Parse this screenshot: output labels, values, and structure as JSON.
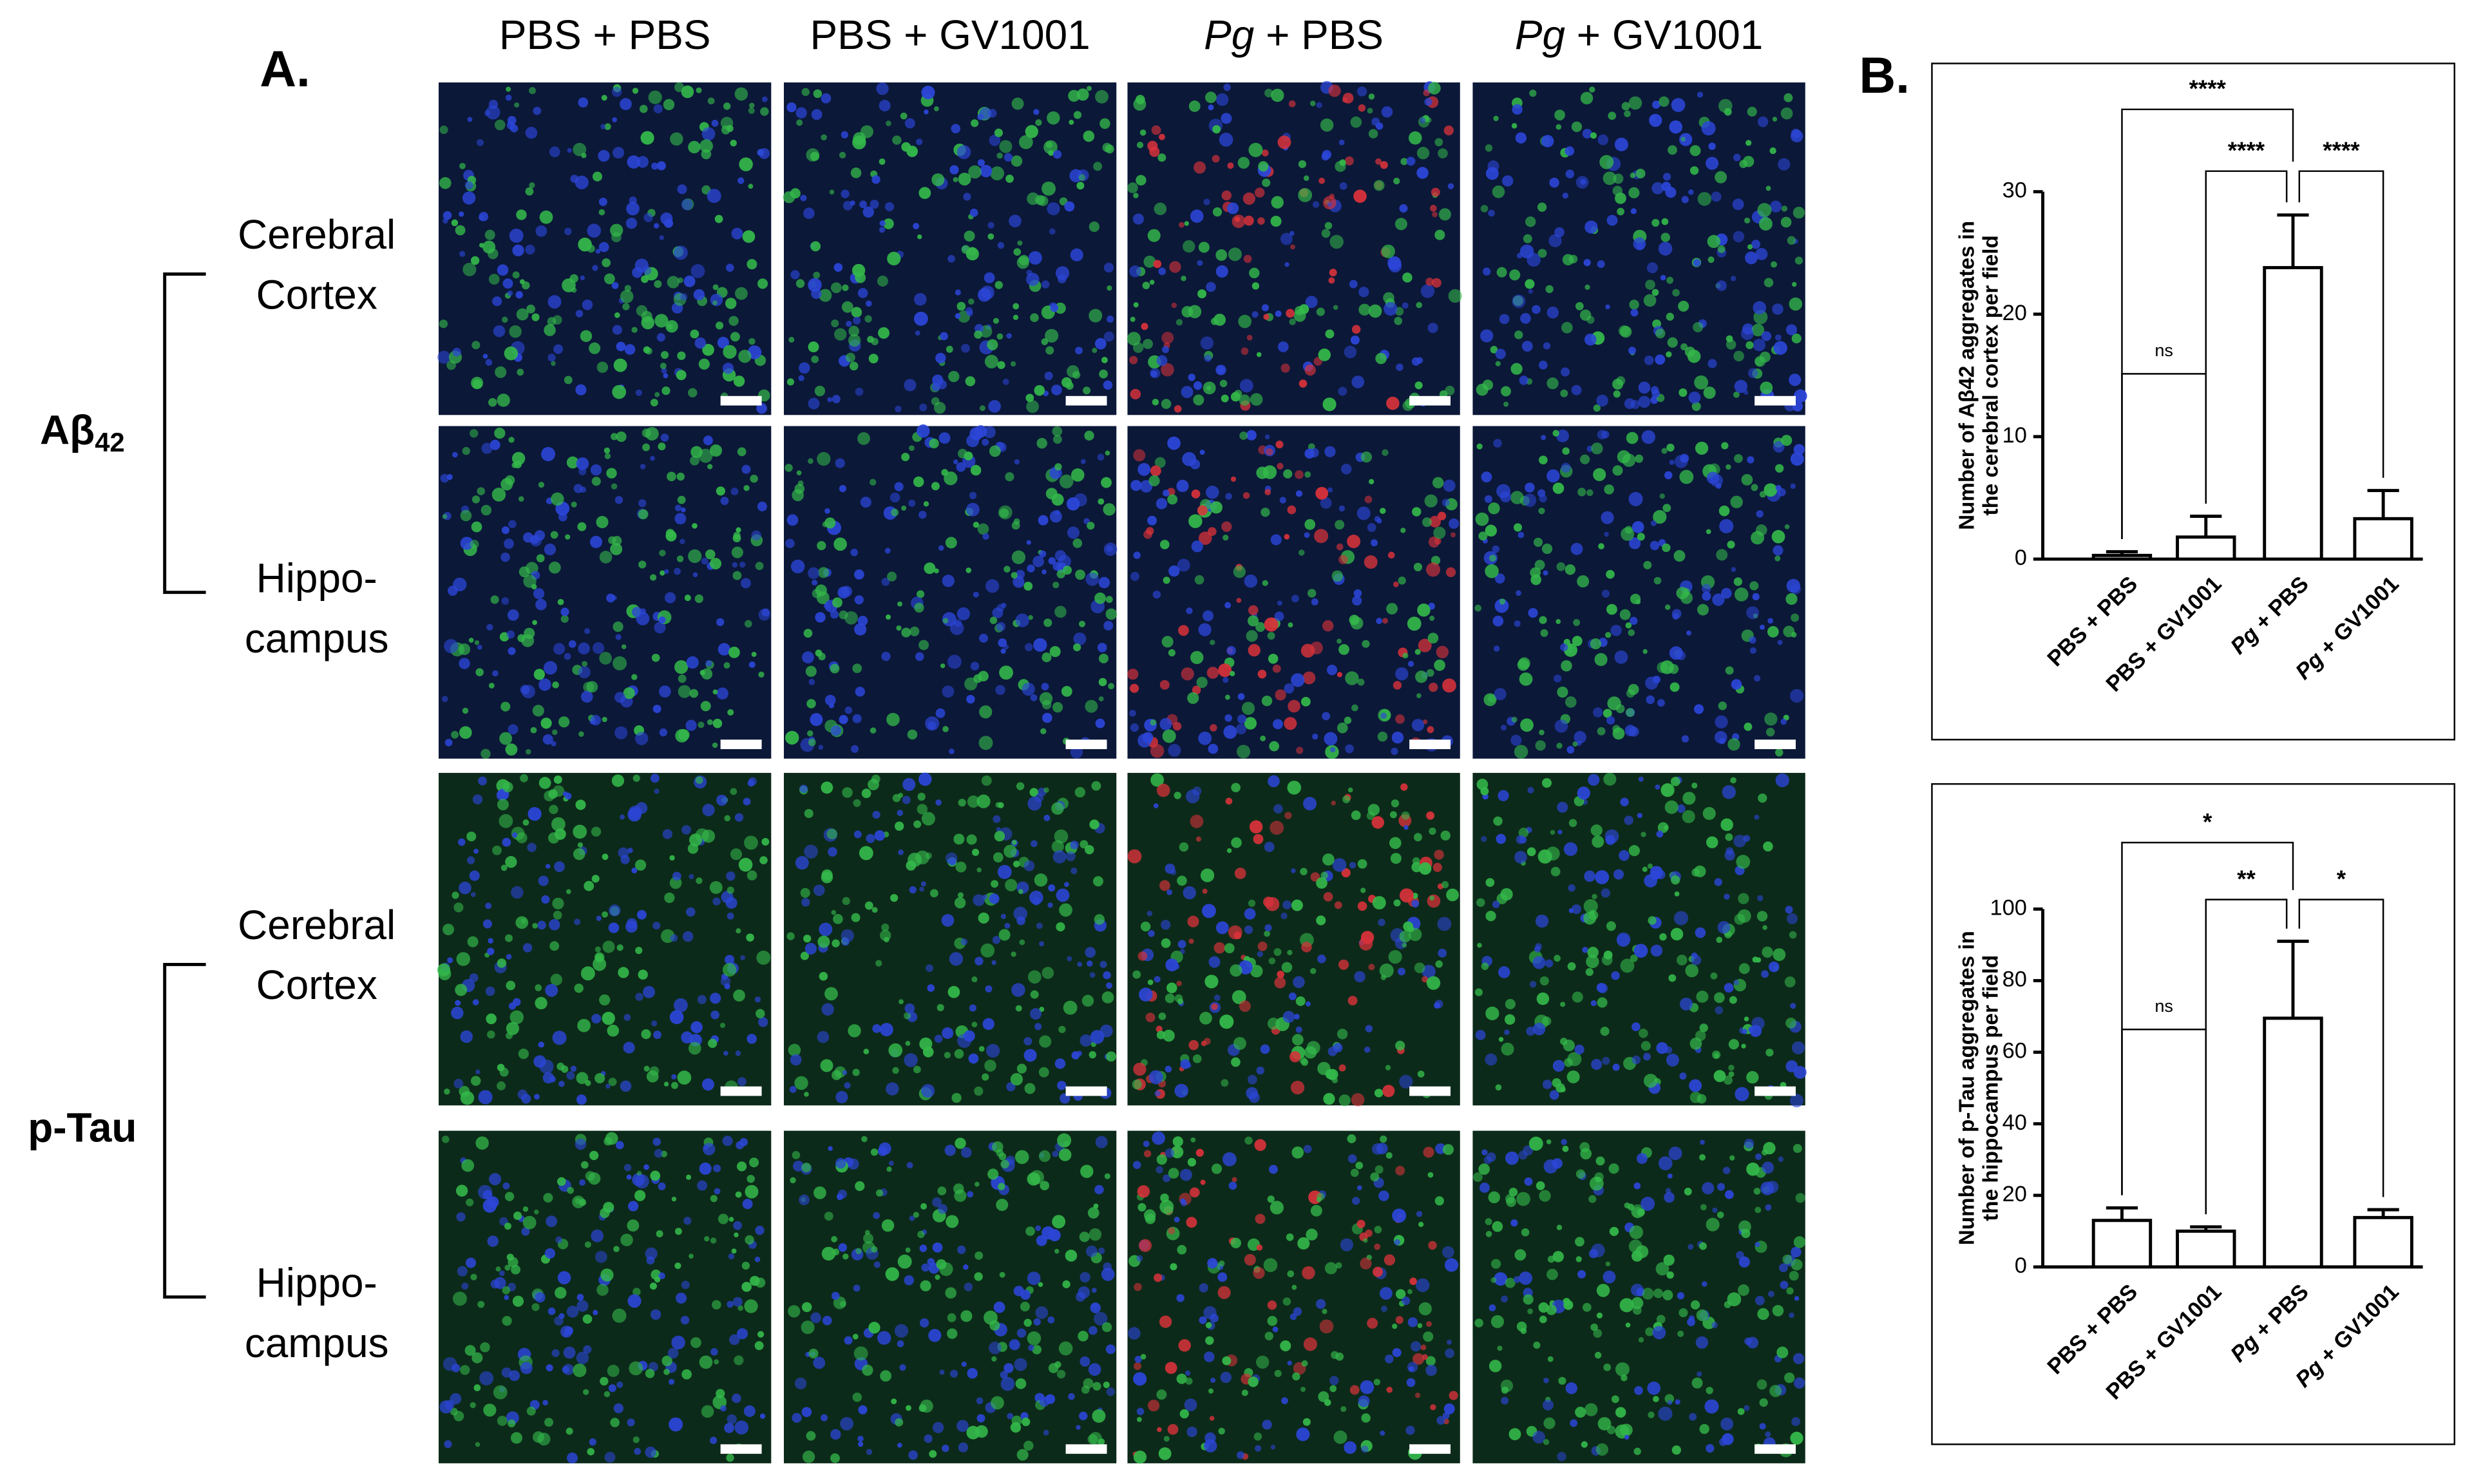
{
  "panel_a": {
    "label": "A.",
    "columns": [
      "PBS + PBS",
      "PBS + GV1001",
      "Pg + PBS",
      "Pg + GV1001"
    ],
    "row_groups": [
      {
        "label": "Aβ42",
        "rows": [
          [
            "Cerebral",
            "Cortex"
          ],
          [
            "Hippo-",
            "campus"
          ]
        ]
      },
      {
        "label": "p-Tau",
        "rows": [
          [
            "Cerebral",
            "Cortex"
          ],
          [
            "Hippo-",
            "campus"
          ]
        ]
      }
    ]
  },
  "panel_b_label": "B.",
  "chart_data": [
    {
      "type": "bar",
      "y_label": [
        "Number of Aβ42 aggregates in",
        "the cerebral cortex per field"
      ],
      "categories": [
        "PBS + PBS",
        "PBS + GV1001",
        "Pg + PBS",
        "Pg + GV1001"
      ],
      "values": [
        0.3,
        1.8,
        23.8,
        3.3
      ],
      "errors": [
        0.3,
        1.7,
        4.3,
        2.3
      ],
      "color": "#000000",
      "ylim": [
        0,
        30
      ],
      "yticks": [
        0,
        10,
        20,
        30
      ],
      "significance": [
        {
          "groups": [
            0,
            2
          ],
          "label": "****"
        },
        {
          "groups": [
            1,
            2
          ],
          "label": "****"
        },
        {
          "groups": [
            2,
            3
          ],
          "label": "****"
        },
        {
          "groups": [
            0,
            1
          ],
          "label": "ns"
        }
      ]
    },
    {
      "type": "bar",
      "y_label": [
        "Number of p-Tau aggregates in",
        "the hippocampus per field"
      ],
      "categories": [
        "PBS + PBS",
        "PBS + GV1001",
        "Pg + PBS",
        "Pg + GV1001"
      ],
      "values": [
        13,
        10,
        69.5,
        13.8
      ],
      "errors": [
        3.5,
        1.2,
        21.5,
        2.2
      ],
      "color": "#000000",
      "ylim": [
        0,
        100
      ],
      "yticks": [
        0,
        20,
        40,
        60,
        80,
        100
      ],
      "significance": [
        {
          "groups": [
            0,
            2
          ],
          "label": "*"
        },
        {
          "groups": [
            1,
            2
          ],
          "label": "**"
        },
        {
          "groups": [
            2,
            3
          ],
          "label": "*"
        },
        {
          "groups": [
            0,
            1
          ],
          "label": "ns"
        }
      ]
    }
  ]
}
